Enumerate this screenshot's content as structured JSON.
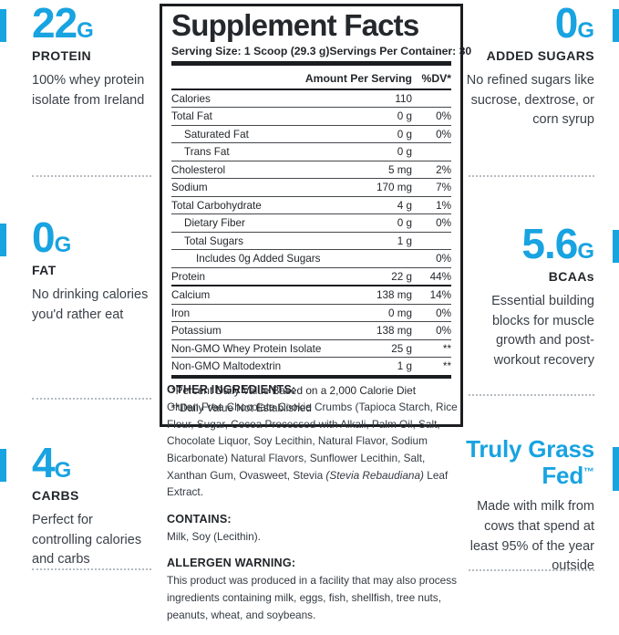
{
  "colors": {
    "accent": "#18a3e1",
    "heading_text": "#24272b",
    "body_text": "#3a4047"
  },
  "features": {
    "left": [
      {
        "value": "22",
        "unit": "G",
        "label": "PROTEIN",
        "description": "100% whey protein isolate from Ireland",
        "variant": "number"
      },
      {
        "value": "0",
        "unit": "G",
        "label": "FAT",
        "description": "No drinking calories you'd rather eat",
        "variant": "number"
      },
      {
        "value": "4",
        "unit": "G",
        "label": "CARBS",
        "description": "Perfect for controlling calories and carbs",
        "variant": "number"
      }
    ],
    "right": [
      {
        "value": "0",
        "unit": "G",
        "label": "ADDED SUGARS",
        "description": "No refined sugars like sucrose, dextrose, or corn syrup",
        "variant": "number"
      },
      {
        "value": "5.6",
        "unit": "G",
        "label": "BCAAs",
        "description": "Essential building blocks for muscle growth and post-workout recovery",
        "variant": "number"
      },
      {
        "value": "Truly Grass Fed",
        "unit": "™",
        "label": "",
        "description": "Made with milk from cows that spend at least 95% of the year outside",
        "variant": "text"
      }
    ]
  },
  "supplement_facts": {
    "title": "Supplement Facts",
    "serving_size": "Serving Size: 1 Scoop (29.3 g)",
    "servings_per_container": "Servings Per Container: 30",
    "columns": {
      "amount": "Amount Per Serving",
      "dv": "%DV*"
    },
    "rows": [
      {
        "name": "Calories",
        "amount": "110",
        "dv": "",
        "indent": 0
      },
      {
        "name": "Total Fat",
        "amount": "0 g",
        "dv": "0%",
        "indent": 0
      },
      {
        "name": "Saturated Fat",
        "amount": "0 g",
        "dv": "0%",
        "indent": 1
      },
      {
        "name": "Trans Fat",
        "amount": "0 g",
        "dv": "",
        "indent": 1
      },
      {
        "name": "Cholesterol",
        "amount": "5 mg",
        "dv": "2%",
        "indent": 0
      },
      {
        "name": "Sodium",
        "amount": "170 mg",
        "dv": "7%",
        "indent": 0
      },
      {
        "name": "Total Carbohydrate",
        "amount": "4 g",
        "dv": "1%",
        "indent": 0
      },
      {
        "name": "Dietary Fiber",
        "amount": "0 g",
        "dv": "0%",
        "indent": 1
      },
      {
        "name": "Total Sugars",
        "amount": "1 g",
        "dv": "",
        "indent": 1
      },
      {
        "name": "Includes 0g Added Sugars",
        "amount": "",
        "dv": "0%",
        "indent": 2
      },
      {
        "name": "Protein",
        "amount": "22 g",
        "dv": "44%",
        "indent": 0,
        "divider_after": "heavy"
      },
      {
        "name": "Calcium",
        "amount": "138 mg",
        "dv": "14%",
        "indent": 0
      },
      {
        "name": "Iron",
        "amount": "0 mg",
        "dv": "0%",
        "indent": 0
      },
      {
        "name": "Potassium",
        "amount": "138 mg",
        "dv": "0%",
        "indent": 0
      },
      {
        "name": "Non-GMO Whey Protein Isolate",
        "amount": "25 g",
        "dv": "**",
        "indent": 0
      },
      {
        "name": "Non-GMO Maltodextrin",
        "amount": "1 g",
        "dv": "**",
        "indent": 0
      }
    ],
    "footnotes": [
      "*Percent Daily Value Based on a 2,000 Calorie Diet",
      "**Daily Value Not Established"
    ]
  },
  "sections": {
    "other_ingredients": {
      "heading": "OTHER INGREDIENTS:",
      "body_before_italic": "Gluten Free Chocolate Cookie Crumbs (Tapioca Starch, Rice Flour, Sugar, Cocoa Processed with Alkali, Palm Oil, Salt, Chocolate Liquor, Soy Lecithin, Natural Flavor, Sodium Bicarbonate) Natural Flavors, Sunflower Lecithin, Salt, Xanthan Gum, Ovasweet, Stevia ",
      "body_italic": "(Stevia Rebaudiana)",
      "body_after_italic": " Leaf Extract."
    },
    "contains": {
      "heading": "CONTAINS:",
      "body": "Milk, Soy (Lecithin)."
    },
    "allergen_warning": {
      "heading": "ALLERGEN WARNING:",
      "body": "This product was produced in a facility that may also process ingredients containing milk, eggs, fish, shellfish, tree nuts, peanuts, wheat, and soybeans."
    }
  }
}
